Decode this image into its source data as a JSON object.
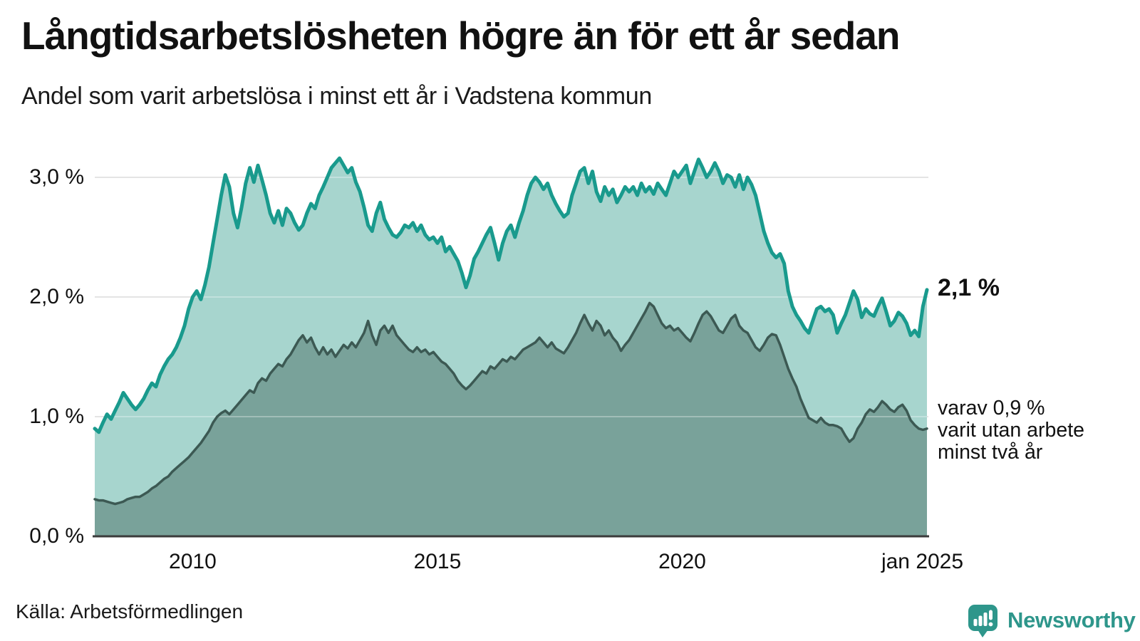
{
  "chart_data": {
    "type": "area",
    "title": "Långtidsarbetslösheten högre än för ett år sedan",
    "subtitle": "Andel som varit arbetslösa i minst ett år i Vadstena kommun",
    "frequency": "monthly",
    "x_start": "2008-01",
    "x_end": "2025-01",
    "ylim": [
      0,
      3.25
    ],
    "grid": "horizontal",
    "y_ticks": [
      {
        "label": "0,0 %",
        "value": 0
      },
      {
        "label": "1,0 %",
        "value": 1
      },
      {
        "label": "2,0 %",
        "value": 2
      },
      {
        "label": "3,0 %",
        "value": 3
      }
    ],
    "x_ticks": [
      {
        "label": "2010",
        "month_index": 24
      },
      {
        "label": "2015",
        "month_index": 84
      },
      {
        "label": "2020",
        "month_index": 144
      },
      {
        "label": "jan 2025",
        "month_index": 204
      }
    ],
    "series": [
      {
        "name": "Andel som varit arbetslösa minst ett år",
        "line_color": "#199a8d",
        "fill_color": "#a7d5ce",
        "values": [
          0.9,
          0.87,
          0.95,
          1.02,
          0.98,
          1.05,
          1.12,
          1.2,
          1.15,
          1.1,
          1.06,
          1.1,
          1.15,
          1.22,
          1.28,
          1.25,
          1.35,
          1.42,
          1.48,
          1.52,
          1.58,
          1.66,
          1.76,
          1.9,
          2.0,
          2.05,
          1.98,
          2.1,
          2.25,
          2.45,
          2.65,
          2.85,
          3.02,
          2.92,
          2.7,
          2.58,
          2.75,
          2.95,
          3.08,
          2.96,
          3.1,
          2.98,
          2.85,
          2.7,
          2.62,
          2.72,
          2.6,
          2.74,
          2.7,
          2.62,
          2.56,
          2.6,
          2.7,
          2.78,
          2.74,
          2.85,
          2.92,
          3.0,
          3.08,
          3.12,
          3.16,
          3.1,
          3.04,
          3.08,
          2.96,
          2.88,
          2.75,
          2.6,
          2.55,
          2.7,
          2.79,
          2.65,
          2.58,
          2.52,
          2.5,
          2.54,
          2.6,
          2.58,
          2.62,
          2.55,
          2.6,
          2.52,
          2.48,
          2.5,
          2.45,
          2.5,
          2.38,
          2.42,
          2.36,
          2.3,
          2.2,
          2.08,
          2.18,
          2.32,
          2.38,
          2.45,
          2.52,
          2.58,
          2.45,
          2.31,
          2.45,
          2.55,
          2.6,
          2.5,
          2.62,
          2.72,
          2.85,
          2.95,
          3.0,
          2.96,
          2.9,
          2.95,
          2.85,
          2.78,
          2.72,
          2.67,
          2.7,
          2.85,
          2.95,
          3.05,
          3.08,
          2.95,
          3.05,
          2.88,
          2.8,
          2.92,
          2.85,
          2.9,
          2.79,
          2.85,
          2.92,
          2.88,
          2.92,
          2.85,
          2.95,
          2.88,
          2.92,
          2.86,
          2.95,
          2.9,
          2.85,
          2.95,
          3.05,
          3.0,
          3.05,
          3.1,
          2.95,
          3.05,
          3.15,
          3.08,
          3.0,
          3.05,
          3.12,
          3.05,
          2.95,
          3.02,
          3.0,
          2.92,
          3.02,
          2.9,
          3.0,
          2.94,
          2.85,
          2.7,
          2.55,
          2.45,
          2.37,
          2.33,
          2.36,
          2.28,
          2.05,
          1.92,
          1.85,
          1.8,
          1.74,
          1.7,
          1.8,
          1.9,
          1.92,
          1.88,
          1.9,
          1.85,
          1.7,
          1.78,
          1.85,
          1.95,
          2.05,
          1.98,
          1.83,
          1.9,
          1.86,
          1.84,
          1.92,
          1.99,
          1.88,
          1.76,
          1.8,
          1.87,
          1.84,
          1.78,
          1.68,
          1.72,
          1.67,
          1.92,
          2.06
        ]
      },
      {
        "name": "Andel som varit utan arbete minst två år",
        "line_color": "#3c5953",
        "fill_color": "#79a29a",
        "values": [
          0.31,
          0.3,
          0.3,
          0.29,
          0.28,
          0.27,
          0.28,
          0.29,
          0.31,
          0.32,
          0.33,
          0.33,
          0.35,
          0.37,
          0.4,
          0.42,
          0.45,
          0.48,
          0.5,
          0.54,
          0.57,
          0.6,
          0.63,
          0.66,
          0.7,
          0.74,
          0.78,
          0.83,
          0.88,
          0.95,
          1.0,
          1.03,
          1.05,
          1.02,
          1.06,
          1.1,
          1.14,
          1.18,
          1.22,
          1.2,
          1.28,
          1.32,
          1.3,
          1.36,
          1.4,
          1.44,
          1.42,
          1.48,
          1.52,
          1.58,
          1.64,
          1.68,
          1.62,
          1.66,
          1.58,
          1.52,
          1.58,
          1.52,
          1.56,
          1.5,
          1.55,
          1.6,
          1.57,
          1.62,
          1.58,
          1.64,
          1.7,
          1.8,
          1.68,
          1.6,
          1.72,
          1.76,
          1.7,
          1.76,
          1.68,
          1.64,
          1.6,
          1.56,
          1.54,
          1.58,
          1.54,
          1.56,
          1.52,
          1.54,
          1.5,
          1.46,
          1.44,
          1.4,
          1.36,
          1.3,
          1.26,
          1.23,
          1.26,
          1.3,
          1.34,
          1.38,
          1.36,
          1.42,
          1.4,
          1.44,
          1.48,
          1.46,
          1.5,
          1.48,
          1.52,
          1.56,
          1.58,
          1.6,
          1.62,
          1.66,
          1.62,
          1.58,
          1.62,
          1.57,
          1.55,
          1.53,
          1.58,
          1.64,
          1.7,
          1.78,
          1.85,
          1.78,
          1.72,
          1.8,
          1.76,
          1.68,
          1.72,
          1.66,
          1.62,
          1.55,
          1.6,
          1.64,
          1.7,
          1.76,
          1.82,
          1.88,
          1.95,
          1.92,
          1.85,
          1.78,
          1.74,
          1.76,
          1.72,
          1.74,
          1.7,
          1.66,
          1.63,
          1.7,
          1.78,
          1.85,
          1.88,
          1.84,
          1.78,
          1.72,
          1.7,
          1.76,
          1.82,
          1.85,
          1.76,
          1.72,
          1.7,
          1.64,
          1.58,
          1.55,
          1.6,
          1.66,
          1.69,
          1.68,
          1.6,
          1.5,
          1.4,
          1.32,
          1.25,
          1.15,
          1.07,
          0.99,
          0.97,
          0.95,
          0.99,
          0.95,
          0.93,
          0.93,
          0.92,
          0.9,
          0.84,
          0.79,
          0.82,
          0.9,
          0.95,
          1.02,
          1.06,
          1.04,
          1.08,
          1.13,
          1.1,
          1.06,
          1.04,
          1.08,
          1.1,
          1.05,
          0.97,
          0.93,
          0.9,
          0.89,
          0.9
        ]
      }
    ],
    "annotations": {
      "latest_value_label": "2,1 %",
      "secondary_label_lines": [
        "varav 0,9 %",
        "varit utan arbete",
        "minst två år"
      ]
    },
    "legend_position": "none",
    "grid_color": "#d9d9d9",
    "axis_color": "#3b3b3b"
  },
  "footer": {
    "source": "Källa: Arbetsförmedlingen",
    "brand": "Newsworthy",
    "brand_color": "#2e968b"
  }
}
